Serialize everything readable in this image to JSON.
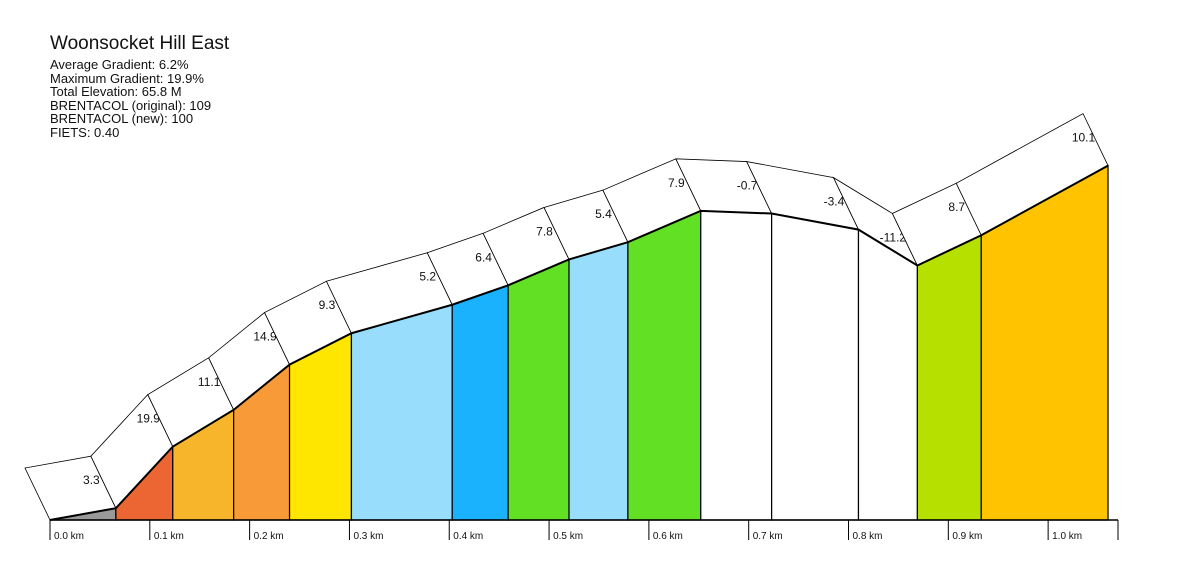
{
  "chart_data": {
    "type": "area",
    "title": "Woonsocket Hill East",
    "stats": [
      "Average Gradient: 6.2%",
      "Maximum Gradient: 19.9%",
      "Total Elevation: 65.8 M",
      "BRENTACOL (original): 109",
      "BRENTACOL (new): 100",
      "FIETS: 0.40"
    ],
    "x_unit": "km",
    "xlim": [
      0,
      1.07
    ],
    "ylim": [
      0,
      70
    ],
    "segments": [
      {
        "start_km": 0.0,
        "end_km": 0.066,
        "gradient": 3.3,
        "color": "#999999"
      },
      {
        "start_km": 0.066,
        "end_km": 0.123,
        "gradient": 19.9,
        "color": "#ec6633"
      },
      {
        "start_km": 0.123,
        "end_km": 0.184,
        "gradient": 11.1,
        "color": "#f7b52b"
      },
      {
        "start_km": 0.184,
        "end_km": 0.24,
        "gradient": 14.9,
        "color": "#f99a38"
      },
      {
        "start_km": 0.24,
        "end_km": 0.302,
        "gradient": 9.3,
        "color": "#ffe600"
      },
      {
        "start_km": 0.302,
        "end_km": 0.403,
        "gradient": 5.2,
        "color": "#99ddfc"
      },
      {
        "start_km": 0.403,
        "end_km": 0.459,
        "gradient": 6.4,
        "color": "#1ab2fc"
      },
      {
        "start_km": 0.459,
        "end_km": 0.52,
        "gradient": 7.8,
        "color": "#62e024"
      },
      {
        "start_km": 0.52,
        "end_km": 0.579,
        "gradient": 5.4,
        "color": "#99ddfc"
      },
      {
        "start_km": 0.579,
        "end_km": 0.652,
        "gradient": 7.9,
        "color": "#62e024"
      },
      {
        "start_km": 0.652,
        "end_km": 0.723,
        "gradient": -0.7,
        "color": "#ffffff"
      },
      {
        "start_km": 0.723,
        "end_km": 0.81,
        "gradient": -3.4,
        "color": "#ffffff"
      },
      {
        "start_km": 0.81,
        "end_km": 0.869,
        "gradient": -11.2,
        "color": "#ffffff"
      },
      {
        "start_km": 0.869,
        "end_km": 0.933,
        "gradient": 8.7,
        "color": "#b5e000"
      },
      {
        "start_km": 0.933,
        "end_km": 1.06,
        "gradient": 10.1,
        "color": "#ffc300"
      }
    ],
    "x_ticks": [
      {
        "km": 0.0,
        "label": "0.0 km"
      },
      {
        "km": 0.1,
        "label": "0.1 km"
      },
      {
        "km": 0.2,
        "label": "0.2 km"
      },
      {
        "km": 0.3,
        "label": "0.3 km"
      },
      {
        "km": 0.4,
        "label": "0.4 km"
      },
      {
        "km": 0.5,
        "label": "0.5 km"
      },
      {
        "km": 0.6,
        "label": "0.6 km"
      },
      {
        "km": 0.7,
        "label": "0.7 km"
      },
      {
        "km": 0.8,
        "label": "0.8 km"
      },
      {
        "km": 0.9,
        "label": "0.9 km"
      },
      {
        "km": 1.0,
        "label": "1.0 km"
      }
    ]
  }
}
